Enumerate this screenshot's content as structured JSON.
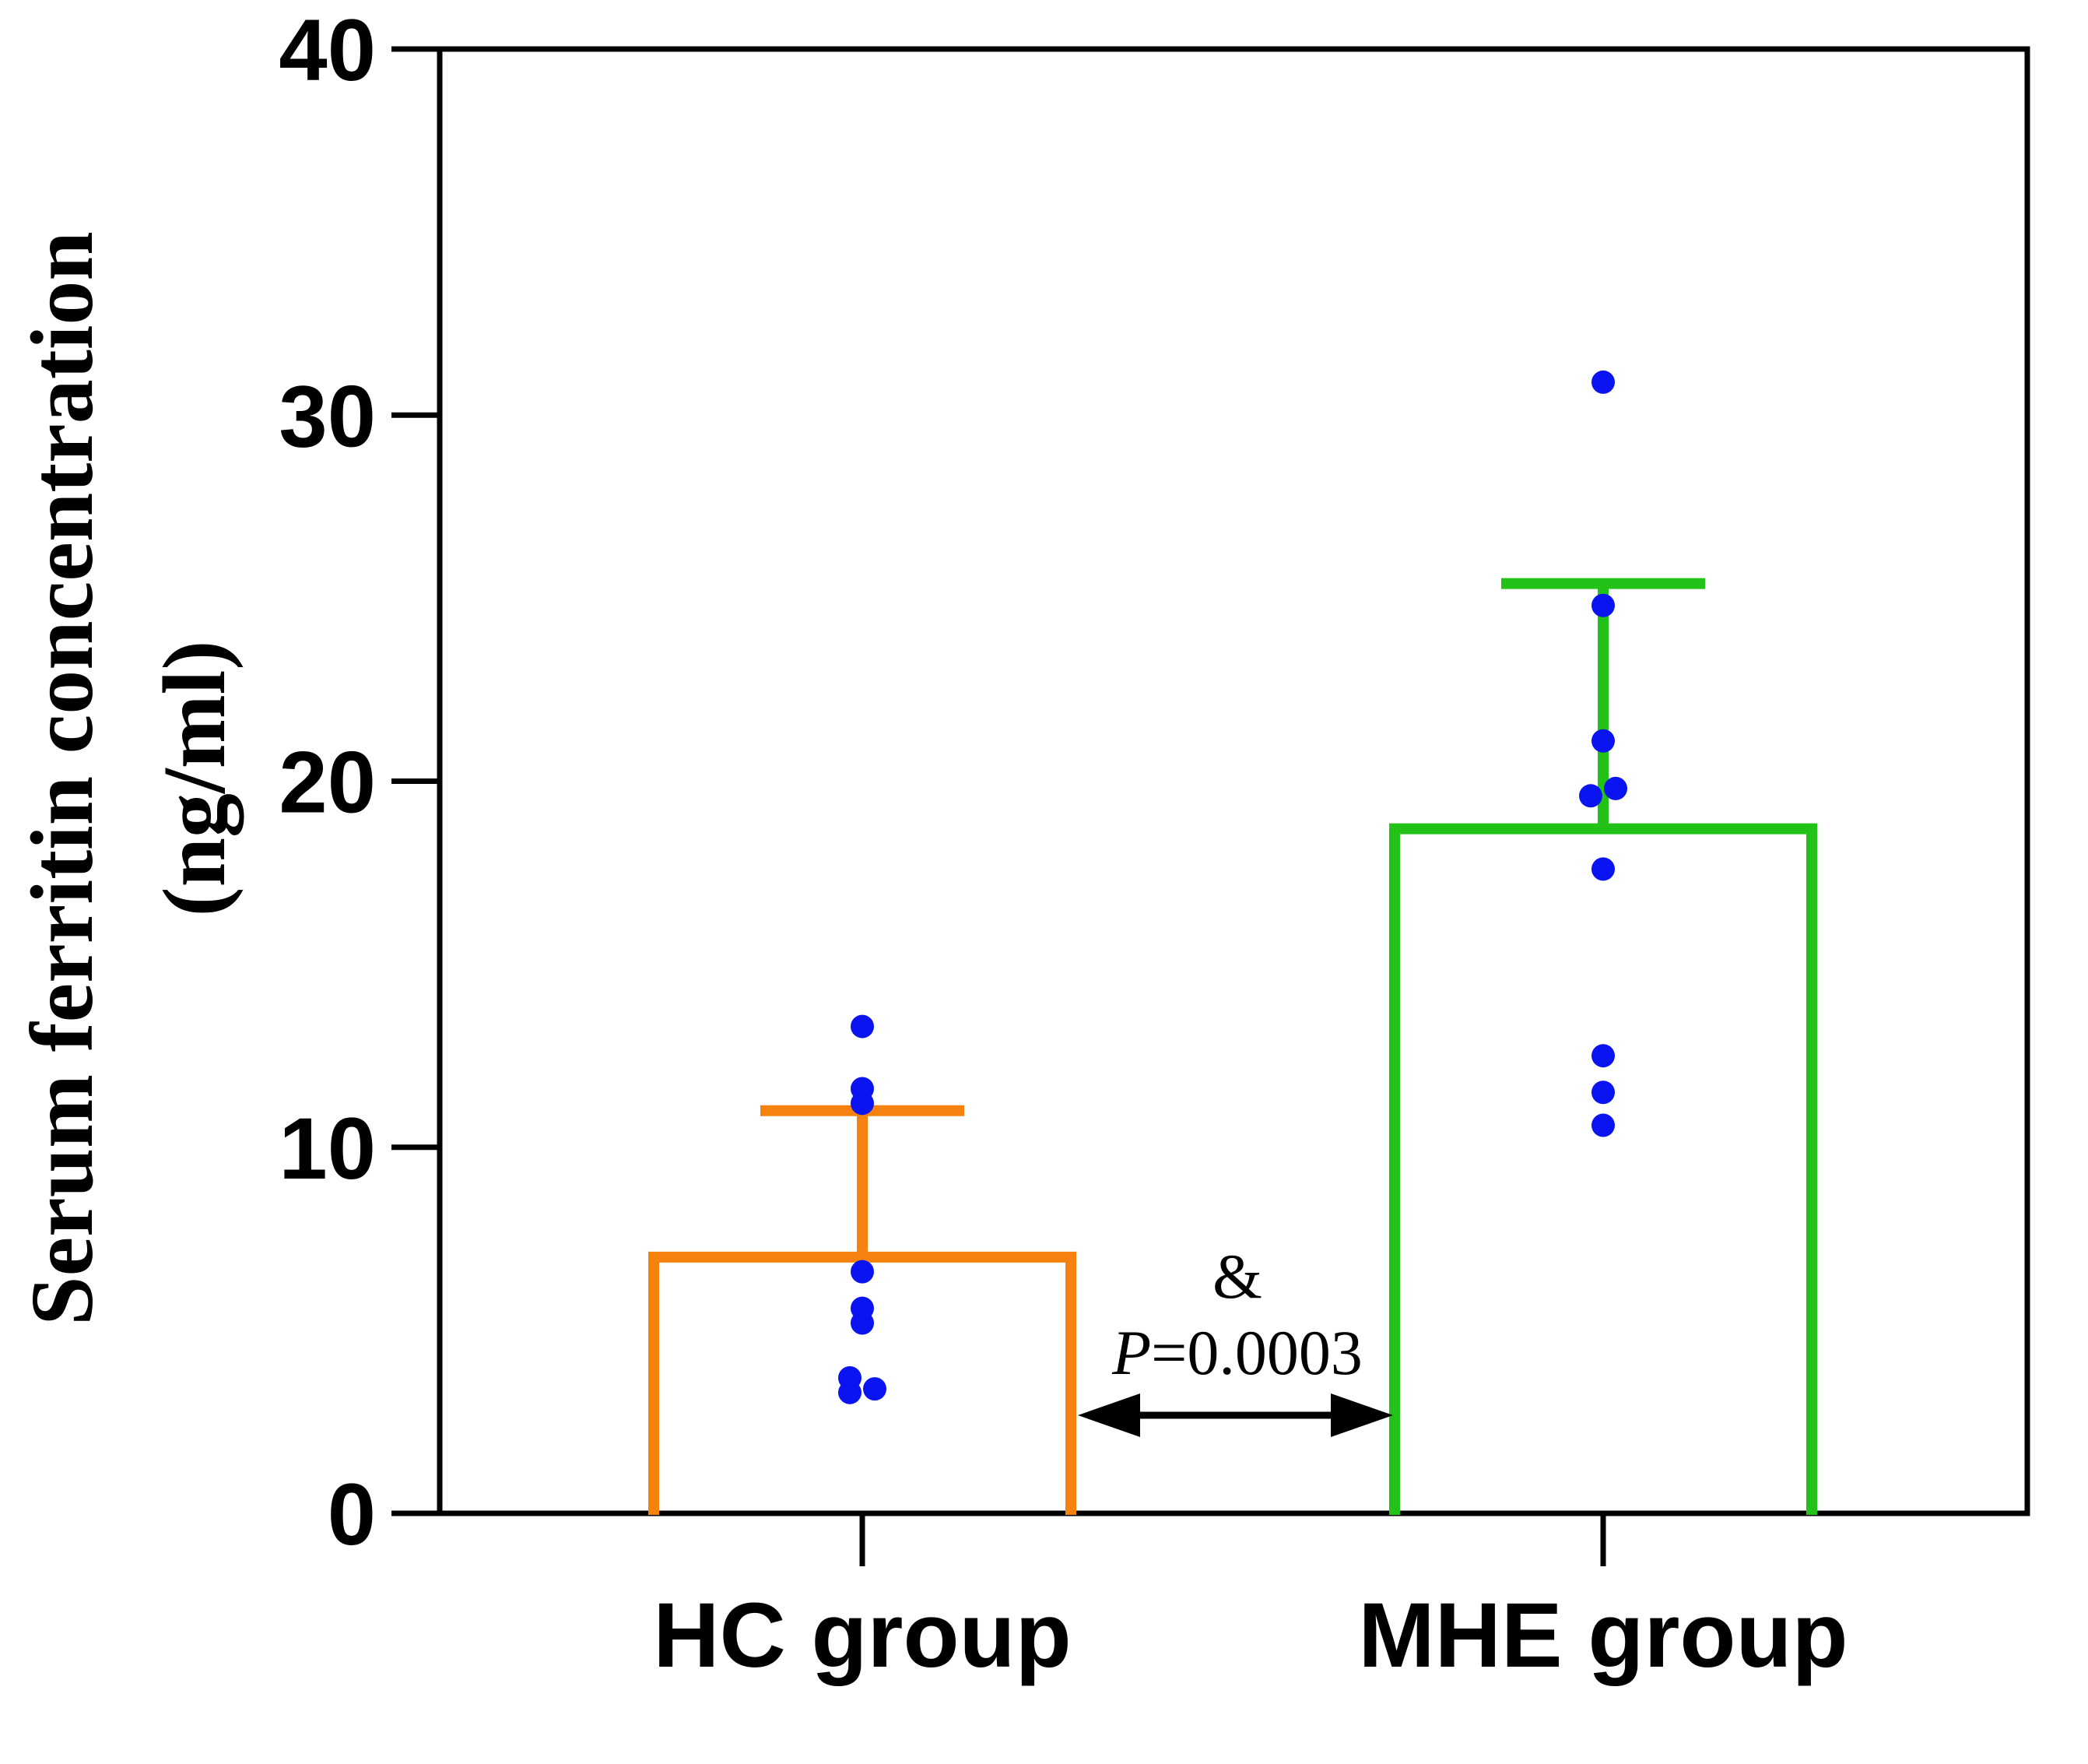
{
  "chart_data": {
    "type": "bar",
    "title": "",
    "xlabel": "",
    "ylabel_lines": [
      "Serum ferritin concentration",
      "(ng/ml)"
    ],
    "ylim": [
      0,
      40
    ],
    "yticks": [
      "0",
      "10",
      "20",
      "30",
      "40"
    ],
    "categories": [
      "HC group",
      "MHE group"
    ],
    "values": [
      7.0,
      18.7
    ],
    "error_upper": [
      11.0,
      25.4
    ],
    "bar_colors": [
      "#f5820f",
      "#22c219"
    ],
    "point_color": "#0a14f0",
    "points": [
      [
        13.3,
        11.6,
        11.2,
        6.6,
        5.6,
        5.2,
        3.7,
        3.3,
        3.4
      ],
      [
        30.9,
        24.8,
        21.1,
        19.6,
        19.8,
        17.6,
        12.5,
        11.5,
        10.6
      ]
    ],
    "annotation": {
      "symbol": "&",
      "p_label": "P",
      "p_value": "=0.0003"
    }
  }
}
